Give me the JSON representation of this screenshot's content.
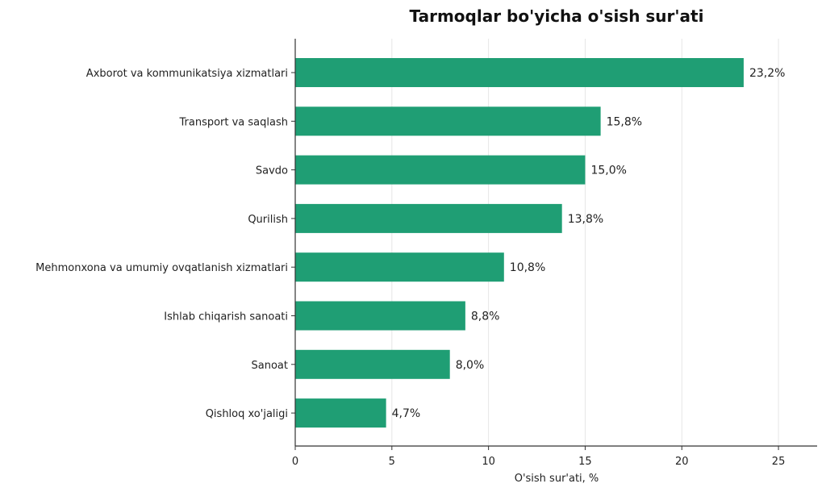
{
  "chart_data": {
    "type": "bar",
    "orientation": "horizontal",
    "title": "Tarmoqlar bo'yicha o'sish sur'ati",
    "xlabel": "O'sish sur'ati, %",
    "ylabel": "",
    "xlim": [
      0,
      27
    ],
    "xticks": [
      0,
      5,
      10,
      15,
      20,
      25
    ],
    "grid": "vertical",
    "color": "#1f9e74",
    "categories": [
      "Axborot va kommunikatsiya xizmatlari",
      "Transport va saqlash",
      "Savdo",
      "Qurilish",
      "Mehmonxona va umumiy ovqatlanish xizmatlari",
      "Ishlab chiqarish sanoati",
      "Sanoat",
      "Qishloq xo'jaligi"
    ],
    "values": [
      23.2,
      15.8,
      15.0,
      13.8,
      10.8,
      8.8,
      8.0,
      4.7
    ],
    "value_labels": [
      "23,2%",
      "15,8%",
      "15,0%",
      "13,8%",
      "10,8%",
      "8,8%",
      "8,0%",
      "4,7%"
    ]
  }
}
